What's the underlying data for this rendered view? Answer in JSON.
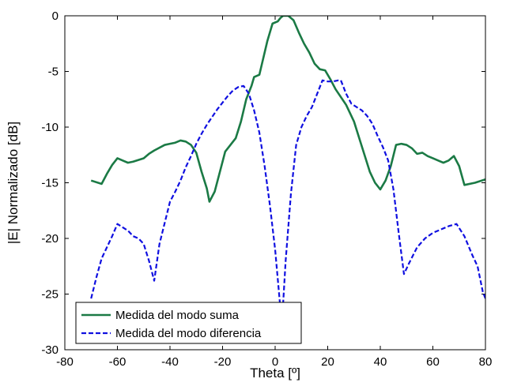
{
  "chart_data": {
    "type": "line",
    "title": "",
    "xlabel": "Theta [º]",
    "ylabel": "|E| Normalizado [dB]",
    "xlim": [
      -80,
      80
    ],
    "ylim": [
      -30,
      0
    ],
    "xticks": [
      -80,
      -60,
      -40,
      -20,
      0,
      20,
      40,
      60,
      80
    ],
    "yticks": [
      0,
      -5,
      -10,
      -15,
      -20,
      -25,
      -30
    ],
    "grid": false,
    "legend_position": "bottom-left",
    "series": [
      {
        "name": "Medida del modo suma",
        "color": "#1b7a45",
        "line_style": "solid",
        "points": [
          [
            -70,
            -14.8
          ],
          [
            -66,
            -15.1
          ],
          [
            -64,
            -14.2
          ],
          [
            -62,
            -13.4
          ],
          [
            -60,
            -12.8
          ],
          [
            -58,
            -13.0
          ],
          [
            -56,
            -13.2
          ],
          [
            -54,
            -13.1
          ],
          [
            -50,
            -12.8
          ],
          [
            -48,
            -12.4
          ],
          [
            -46,
            -12.1
          ],
          [
            -42,
            -11.6
          ],
          [
            -40,
            -11.5
          ],
          [
            -38,
            -11.4
          ],
          [
            -36,
            -11.2
          ],
          [
            -34,
            -11.3
          ],
          [
            -32,
            -11.6
          ],
          [
            -30,
            -12.3
          ],
          [
            -28,
            -14.0
          ],
          [
            -26,
            -15.5
          ],
          [
            -25,
            -16.7
          ],
          [
            -23,
            -15.8
          ],
          [
            -21,
            -14.0
          ],
          [
            -19,
            -12.2
          ],
          [
            -17,
            -11.6
          ],
          [
            -15,
            -11.0
          ],
          [
            -13,
            -9.5
          ],
          [
            -11,
            -7.5
          ],
          [
            -9,
            -6.3
          ],
          [
            -8,
            -5.5
          ],
          [
            -6,
            -5.3
          ],
          [
            -5,
            -4.3
          ],
          [
            -3,
            -2.3
          ],
          [
            -1,
            -0.7
          ],
          [
            1,
            -0.5
          ],
          [
            2,
            -0.2
          ],
          [
            3,
            0.0
          ],
          [
            5,
            0.0
          ],
          [
            7,
            -0.4
          ],
          [
            9,
            -1.5
          ],
          [
            11,
            -2.5
          ],
          [
            13,
            -3.3
          ],
          [
            15,
            -4.3
          ],
          [
            17,
            -4.8
          ],
          [
            19,
            -4.9
          ],
          [
            21,
            -5.7
          ],
          [
            23,
            -6.6
          ],
          [
            25,
            -7.3
          ],
          [
            27,
            -8.0
          ],
          [
            30,
            -9.5
          ],
          [
            32,
            -11.0
          ],
          [
            34,
            -12.5
          ],
          [
            36,
            -14.0
          ],
          [
            38,
            -15.0
          ],
          [
            40,
            -15.6
          ],
          [
            42,
            -14.8
          ],
          [
            44,
            -13.5
          ],
          [
            46,
            -11.6
          ],
          [
            48,
            -11.5
          ],
          [
            50,
            -11.6
          ],
          [
            52,
            -11.9
          ],
          [
            54,
            -12.4
          ],
          [
            56,
            -12.3
          ],
          [
            58,
            -12.6
          ],
          [
            60,
            -12.8
          ],
          [
            62,
            -13.0
          ],
          [
            64,
            -13.2
          ],
          [
            66,
            -13.0
          ],
          [
            68,
            -12.6
          ],
          [
            70,
            -13.5
          ],
          [
            72,
            -15.2
          ],
          [
            76,
            -15.0
          ],
          [
            80,
            -14.7
          ]
        ]
      },
      {
        "name": "Medida del modo diferencia",
        "color": "#1010e0",
        "line_style": "dashed",
        "points": [
          [
            -70,
            -25.4
          ],
          [
            -68,
            -23.5
          ],
          [
            -66,
            -21.8
          ],
          [
            -64,
            -20.8
          ],
          [
            -62,
            -19.8
          ],
          [
            -60,
            -18.7
          ],
          [
            -58,
            -19.0
          ],
          [
            -56,
            -19.3
          ],
          [
            -54,
            -19.8
          ],
          [
            -52,
            -20.0
          ],
          [
            -50,
            -20.5
          ],
          [
            -48,
            -22.0
          ],
          [
            -46,
            -23.8
          ],
          [
            -44,
            -20.5
          ],
          [
            -42,
            -18.6
          ],
          [
            -40,
            -16.7
          ],
          [
            -38,
            -15.8
          ],
          [
            -36,
            -14.8
          ],
          [
            -34,
            -13.6
          ],
          [
            -32,
            -12.6
          ],
          [
            -30,
            -11.5
          ],
          [
            -28,
            -10.6
          ],
          [
            -26,
            -9.8
          ],
          [
            -24,
            -9.1
          ],
          [
            -22,
            -8.4
          ],
          [
            -20,
            -7.8
          ],
          [
            -18,
            -7.2
          ],
          [
            -16,
            -6.7
          ],
          [
            -14,
            -6.4
          ],
          [
            -12,
            -6.3
          ],
          [
            -10,
            -7.0
          ],
          [
            -8,
            -8.5
          ],
          [
            -6,
            -10.5
          ],
          [
            -4,
            -13.5
          ],
          [
            -2,
            -17.0
          ],
          [
            0,
            -21.0
          ],
          [
            2,
            -26.3
          ],
          [
            3,
            -26.0
          ],
          [
            4,
            -22.0
          ],
          [
            6,
            -16.0
          ],
          [
            8,
            -11.6
          ],
          [
            10,
            -10.0
          ],
          [
            12,
            -9.0
          ],
          [
            14,
            -8.2
          ],
          [
            16,
            -7.0
          ],
          [
            18,
            -5.8
          ],
          [
            20,
            -5.9
          ],
          [
            22,
            -5.9
          ],
          [
            24,
            -5.8
          ],
          [
            25,
            -5.8
          ],
          [
            27,
            -7.0
          ],
          [
            29,
            -7.9
          ],
          [
            31,
            -8.2
          ],
          [
            33,
            -8.5
          ],
          [
            35,
            -9.0
          ],
          [
            37,
            -9.7
          ],
          [
            39,
            -10.8
          ],
          [
            41,
            -11.8
          ],
          [
            43,
            -13.0
          ],
          [
            45,
            -15.6
          ],
          [
            47,
            -19.5
          ],
          [
            49,
            -23.2
          ],
          [
            51,
            -22.2
          ],
          [
            54,
            -20.8
          ],
          [
            57,
            -20.0
          ],
          [
            60,
            -19.5
          ],
          [
            63,
            -19.2
          ],
          [
            66,
            -18.9
          ],
          [
            69,
            -18.7
          ],
          [
            72,
            -19.8
          ],
          [
            75,
            -21.5
          ],
          [
            77,
            -22.5
          ],
          [
            79,
            -24.8
          ],
          [
            80,
            -25.4
          ]
        ]
      }
    ]
  }
}
